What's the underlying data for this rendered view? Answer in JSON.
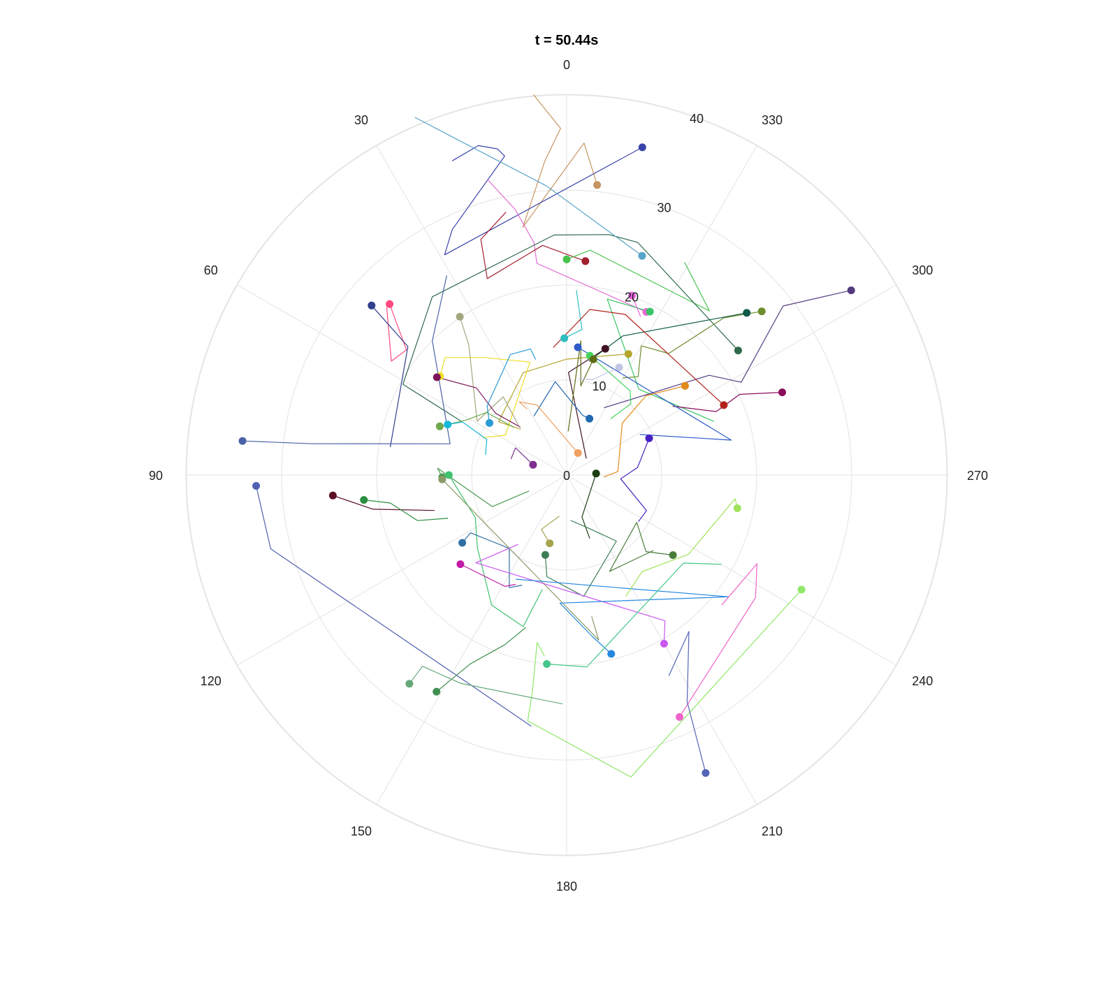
{
  "chart_data": {
    "type": "polar-scatter",
    "title": "t = 50.44s",
    "angular_axis": {
      "direction": "counterclockwise",
      "rotation": "0 at top",
      "tick_values": [
        0,
        30,
        60,
        90,
        120,
        150,
        180,
        210,
        240,
        270,
        300,
        330
      ],
      "tick_labels": [
        "0",
        "30",
        "60",
        "90",
        "120",
        "150",
        "180",
        "210",
        "240",
        "270",
        "300",
        "330"
      ],
      "unit": "degrees"
    },
    "radial_axis": {
      "range": [
        0,
        40
      ],
      "tick_values": [
        0,
        10,
        20,
        30,
        40
      ],
      "tick_labels": [
        "0",
        "10",
        "20",
        "30",
        "40"
      ],
      "label_angle": 340
    },
    "grid": true,
    "legend": "none",
    "series": [
      {
        "color": "#c69560",
        "trail": [
          [
            30.7,
            354
          ],
          [
            35.0,
            357
          ],
          [
            26.5,
            10
          ],
          [
            33.1,
            4
          ],
          [
            36.5,
            1
          ],
          [
            40.2,
            5
          ]
        ]
      },
      {
        "color": "#3a43a8",
        "trail": [
          [
            35.4,
            347
          ],
          [
            26.5,
            29
          ],
          [
            28.5,
            25
          ],
          [
            34.2,
            11
          ],
          [
            35.1,
            12
          ],
          [
            35.9,
            15
          ],
          [
            35.2,
            20
          ]
        ]
      },
      {
        "color": "#e36bd1",
        "trail": [
          [
            19.1,
            334
          ],
          [
            22.5,
            8
          ],
          [
            24.7,
            8
          ],
          [
            28.5,
            11
          ],
          [
            32.2,
            15
          ]
        ]
      },
      {
        "color": "#a2202e",
        "trail": [
          [
            22.6,
            355
          ],
          [
            24.3,
            6
          ],
          [
            22.3,
            22
          ],
          [
            26.4,
            20
          ],
          [
            28.4,
            13
          ]
        ]
      },
      {
        "color": "#47c34d",
        "trail": [
          [
            22.7,
            360
          ],
          [
            23.8,
            354
          ],
          [
            22.9,
            319
          ],
          [
            25.6,
            331
          ]
        ]
      },
      {
        "color": "#2f6a4c",
        "trail": [
          [
            22.3,
            306
          ],
          [
            25.6,
            343
          ],
          [
            25.7,
            350
          ],
          [
            25.3,
            3
          ],
          [
            23.5,
            37
          ],
          [
            19.7,
            61
          ],
          [
            12.4,
            63
          ]
        ]
      },
      {
        "color": "#57a3c9",
        "trail": [
          [
            24.4,
            341
          ],
          [
            30.5,
            4
          ],
          [
            40.9,
            23
          ]
        ]
      },
      {
        "color": "#2ebdc0",
        "trail": [
          [
            14.4,
            1
          ],
          [
            15.4,
            354
          ],
          [
            19.5,
            357
          ]
        ]
      },
      {
        "color": "#3ac468",
        "trail": [
          [
            19.3,
            333
          ],
          [
            19.0,
            347
          ],
          [
            11.8,
            320
          ],
          [
            16.5,
            290
          ]
        ]
      },
      {
        "color": "#e95ee0",
        "trail": [
          [
            20.1,
            340
          ],
          [
            18.4,
            335
          ]
        ]
      },
      {
        "color": "#ff497f",
        "trail": [
          [
            25.9,
            46
          ],
          [
            21.4,
            52
          ],
          [
            22.0,
            57
          ],
          [
            25.9,
            47
          ]
        ]
      },
      {
        "color": "#30408c",
        "trail": [
          [
            27.2,
            49
          ],
          [
            21.5,
            51
          ],
          [
            18.8,
            81
          ]
        ]
      },
      {
        "color": "#0f5b4b",
        "trail": [
          [
            25.5,
            312
          ],
          [
            15.8,
            338
          ],
          [
            12.2,
            349
          ]
        ]
      },
      {
        "color": "#6d8d2d",
        "trail": [
          [
            26.8,
            310
          ],
          [
            23.4,
            315
          ],
          [
            16.7,
            320
          ],
          [
            15.7,
            330
          ],
          [
            12.8,
            324
          ],
          [
            11.8,
            330
          ]
        ]
      },
      {
        "color": "#533a80",
        "trail": [
          [
            35.7,
            303
          ],
          [
            28.9,
            308
          ],
          [
            20.8,
            298
          ],
          [
            18.3,
            305
          ],
          [
            8.1,
            331
          ]
        ]
      },
      {
        "color": "#8a0e5c",
        "trail": [
          [
            24.3,
            291
          ],
          [
            20.1,
            295
          ],
          [
            17.1,
            293
          ],
          [
            13.3,
            303
          ]
        ]
      },
      {
        "color": "#b3221a",
        "trail": [
          [
            18.1,
            294
          ],
          [
            18.0,
            340
          ],
          [
            17.6,
            352
          ],
          [
            13.5,
            6
          ]
        ]
      },
      {
        "color": "#3e1225",
        "trail": [
          [
            13.9,
            343
          ],
          [
            10.8,
            359
          ],
          [
            2.7,
            310
          ]
        ]
      },
      {
        "color": "#b3a62a",
        "trail": [
          [
            14.3,
            333
          ],
          [
            12.2,
            360
          ],
          [
            11.7,
            23
          ],
          [
            9.1,
            52
          ],
          [
            6.8,
            45
          ]
        ]
      },
      {
        "color": "#2e5cc8",
        "trail": [
          [
            13.5,
            355
          ],
          [
            17.7,
            282
          ],
          [
            8.8,
            299
          ]
        ]
      },
      {
        "color": "#44d25f",
        "trail": [
          [
            12.8,
            349
          ],
          [
            11.1,
            323
          ],
          [
            10.1,
            318
          ],
          [
            7.5,
            322
          ]
        ]
      },
      {
        "color": "#5f6b14",
        "trail": [
          [
            12.5,
            347
          ],
          [
            9.5,
            351
          ],
          [
            14.2,
            354
          ],
          [
            4.6,
            358
          ]
        ]
      },
      {
        "color": "#bfc6e3",
        "trail": [
          [
            12.6,
            334
          ],
          [
            10.4,
            345
          ],
          [
            10.2,
            353
          ]
        ]
      },
      {
        "color": "#eedd26",
        "trail": [
          [
            16.9,
            52
          ],
          [
            17.8,
            46
          ],
          [
            15.1,
            35
          ],
          [
            12.5,
            18
          ],
          [
            7.7,
            57
          ],
          [
            9.7,
            66
          ]
        ]
      },
      {
        "color": "#a3a77f",
        "trail": [
          [
            20.1,
            34
          ],
          [
            17.1,
            37
          ],
          [
            11.0,
            59
          ],
          [
            10.6,
            39
          ],
          [
            7.3,
            44
          ]
        ]
      },
      {
        "color": "#7f145a",
        "trail": [
          [
            17.1,
            53
          ],
          [
            13.2,
            46
          ],
          [
            9.9,
            49
          ],
          [
            7.0,
            44
          ]
        ]
      },
      {
        "color": "#e28b1a",
        "trail": [
          [
            15.6,
            307
          ],
          [
            11.8,
            315
          ],
          [
            8.0,
            313
          ],
          [
            5.4,
            274
          ],
          [
            3.9,
            267
          ]
        ]
      },
      {
        "color": "#6ea84c",
        "trail": [
          [
            14.3,
            69
          ],
          [
            12.0,
            61
          ],
          [
            10.7,
            52
          ],
          [
            7.5,
            48
          ]
        ]
      },
      {
        "color": "#18b8d9",
        "trail": [
          [
            13.6,
            67
          ],
          [
            12.3,
            63
          ],
          [
            9.2,
            66
          ],
          [
            8.8,
            76
          ]
        ]
      },
      {
        "color": "#2068b0",
        "trail": [
          [
            6.4,
            338
          ],
          [
            6.5,
            345
          ],
          [
            9.9,
            7
          ],
          [
            7.1,
            29
          ]
        ]
      },
      {
        "color": "#4620c3",
        "trail": [
          [
            9.5,
            294
          ],
          [
            7.5,
            276
          ],
          [
            5.7,
            266
          ],
          [
            9.2,
            246
          ],
          [
            9.0,
            237
          ]
        ]
      },
      {
        "color": "#f0a060",
        "trail": [
          [
            2.6,
            333
          ],
          [
            8.0,
            23
          ],
          [
            9.2,
            33
          ],
          [
            8.1,
            31
          ]
        ]
      },
      {
        "color": "#1b3f10",
        "trail": [
          [
            3.1,
            273
          ],
          [
            4.7,
            200
          ],
          [
            7.1,
            200
          ]
        ]
      },
      {
        "color": "#4a9a52",
        "trail": [
          [
            13.1,
            91
          ],
          [
            13.6,
            87
          ],
          [
            10.2,
            100
          ],
          [
            8.5,
            113
          ],
          [
            4.3,
            113
          ]
        ]
      },
      {
        "color": "#3ec26e",
        "trail": [
          [
            12.4,
            90
          ],
          [
            10.6,
            115
          ],
          [
            12.1,
            129
          ],
          [
            15.8,
            150
          ],
          [
            16.6,
            164
          ],
          [
            12.3,
            168
          ]
        ]
      },
      {
        "color": "#5a0f24",
        "trail": [
          [
            24.7,
            95
          ],
          [
            20.7,
            100
          ],
          [
            14.4,
            105
          ]
        ]
      },
      {
        "color": "#2a8f41",
        "trail": [
          [
            21.5,
            97
          ],
          [
            18.8,
            99
          ],
          [
            16.4,
            107
          ],
          [
            13.3,
            110
          ]
        ]
      },
      {
        "color": "#4a63a8",
        "trail": [
          [
            34.3,
            84
          ],
          [
            27.0,
            83
          ],
          [
            12.7,
            75
          ],
          [
            20.0,
            45
          ],
          [
            24.5,
            31
          ]
        ]
      },
      {
        "color": "#5160b0",
        "trail": [
          [
            32.7,
            92
          ],
          [
            32.1,
            104
          ],
          [
            26.7,
            172
          ]
        ]
      },
      {
        "color": "#2e6fa5",
        "trail": [
          [
            13.1,
            123
          ],
          [
            11.8,
            121
          ],
          [
            9.8,
            142
          ],
          [
            13.3,
            153
          ],
          [
            12.5,
            158
          ]
        ]
      },
      {
        "color": "#a6a44c",
        "trail": [
          [
            7.4,
            166
          ],
          [
            6.3,
            155
          ],
          [
            4.4,
            170
          ]
        ]
      },
      {
        "color": "#3d7d56",
        "trail": [
          [
            8.7,
            165
          ],
          [
            10.9,
            169
          ],
          [
            12.9,
            188
          ],
          [
            8.7,
            217
          ],
          [
            5.7,
            199
          ],
          [
            4.8,
            185
          ]
        ]
      },
      {
        "color": "#c21ba8",
        "trail": [
          [
            14.6,
            130
          ],
          [
            13.4,
            151
          ],
          [
            12.7,
            155
          ]
        ]
      },
      {
        "color": "#8a9a6a",
        "trail": [
          [
            13.1,
            92
          ],
          [
            17.7,
            191
          ],
          [
            15.1,
            190
          ]
        ]
      },
      {
        "color": "#c957f0",
        "trail": [
          [
            20.5,
            210
          ],
          [
            18.5,
            214
          ],
          [
            13.3,
            134
          ],
          [
            8.9,
            145
          ]
        ]
      },
      {
        "color": "#2588e0",
        "trail": [
          [
            19.4,
            194
          ],
          [
            17.2,
            189
          ],
          [
            13.5,
            177
          ],
          [
            21.3,
            233
          ],
          [
            12.2,
            154
          ]
        ]
      },
      {
        "color": "#44c788",
        "trail": [
          [
            20.0,
            174
          ],
          [
            20.3,
            186
          ],
          [
            15.4,
            233
          ],
          [
            18.8,
            240
          ]
        ]
      },
      {
        "color": "#4a7d3a",
        "trail": [
          [
            14.0,
            233
          ],
          [
            11.6,
            226
          ],
          [
            8.9,
            236
          ],
          [
            11.1,
            204
          ],
          [
            12.1,
            229
          ]
        ]
      },
      {
        "color": "#a0e35a",
        "trail": [
          [
            18.3,
            259
          ],
          [
            17.9,
            262
          ],
          [
            15.3,
            237
          ],
          [
            12.9,
            218
          ],
          [
            14.2,
            206
          ]
        ]
      },
      {
        "color": "#8fe868",
        "trail": [
          [
            27.5,
            244
          ],
          [
            32.5,
            192
          ],
          [
            26.2,
            171
          ],
          [
            23.1,
            171
          ],
          [
            17.9,
            170
          ],
          [
            19.2,
            173
          ]
        ]
      },
      {
        "color": "#ee64c9",
        "trail": [
          [
            28.1,
            205
          ],
          [
            23.7,
            237
          ],
          [
            22.1,
            245
          ],
          [
            21.3,
            230
          ]
        ]
      },
      {
        "color": "#3f8f50",
        "trail": [
          [
            26.6,
            149
          ],
          [
            22.3,
            153
          ],
          [
            19.0,
            160
          ],
          [
            16.6,
            165
          ]
        ]
      },
      {
        "color": "#66a87a",
        "trail": [
          [
            27.5,
            143
          ],
          [
            25.2,
            143
          ],
          [
            24.6,
            153
          ],
          [
            24.1,
            179
          ]
        ]
      },
      {
        "color": "#5365b5",
        "trail": [
          [
            34.6,
            205
          ],
          [
            27.0,
            208
          ],
          [
            20.9,
            218
          ],
          [
            23.7,
            207
          ]
        ]
      },
      {
        "color": "#7d2f8f",
        "trail": [
          [
            3.7,
            73
          ],
          [
            6.1,
            62
          ],
          [
            6.1,
            74
          ]
        ]
      },
      {
        "color": "#2a9bd6",
        "trail": [
          [
            9.8,
            56
          ],
          [
            11.1,
            49
          ],
          [
            14.0,
            25
          ],
          [
            13.8,
            16
          ],
          [
            12.6,
            15
          ]
        ]
      }
    ]
  }
}
